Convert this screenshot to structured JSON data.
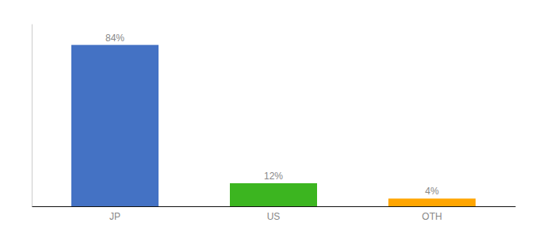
{
  "chart_data": {
    "type": "bar",
    "categories": [
      "JP",
      "US",
      "OTH"
    ],
    "values": [
      84,
      12,
      4
    ],
    "value_labels": [
      "84%",
      "12%",
      "4%"
    ],
    "colors": [
      "#4472C4",
      "#3CB520",
      "#FFA500"
    ],
    "ylim": [
      0,
      95
    ],
    "data_labels": true,
    "tick_labels": "x",
    "grid": false
  }
}
